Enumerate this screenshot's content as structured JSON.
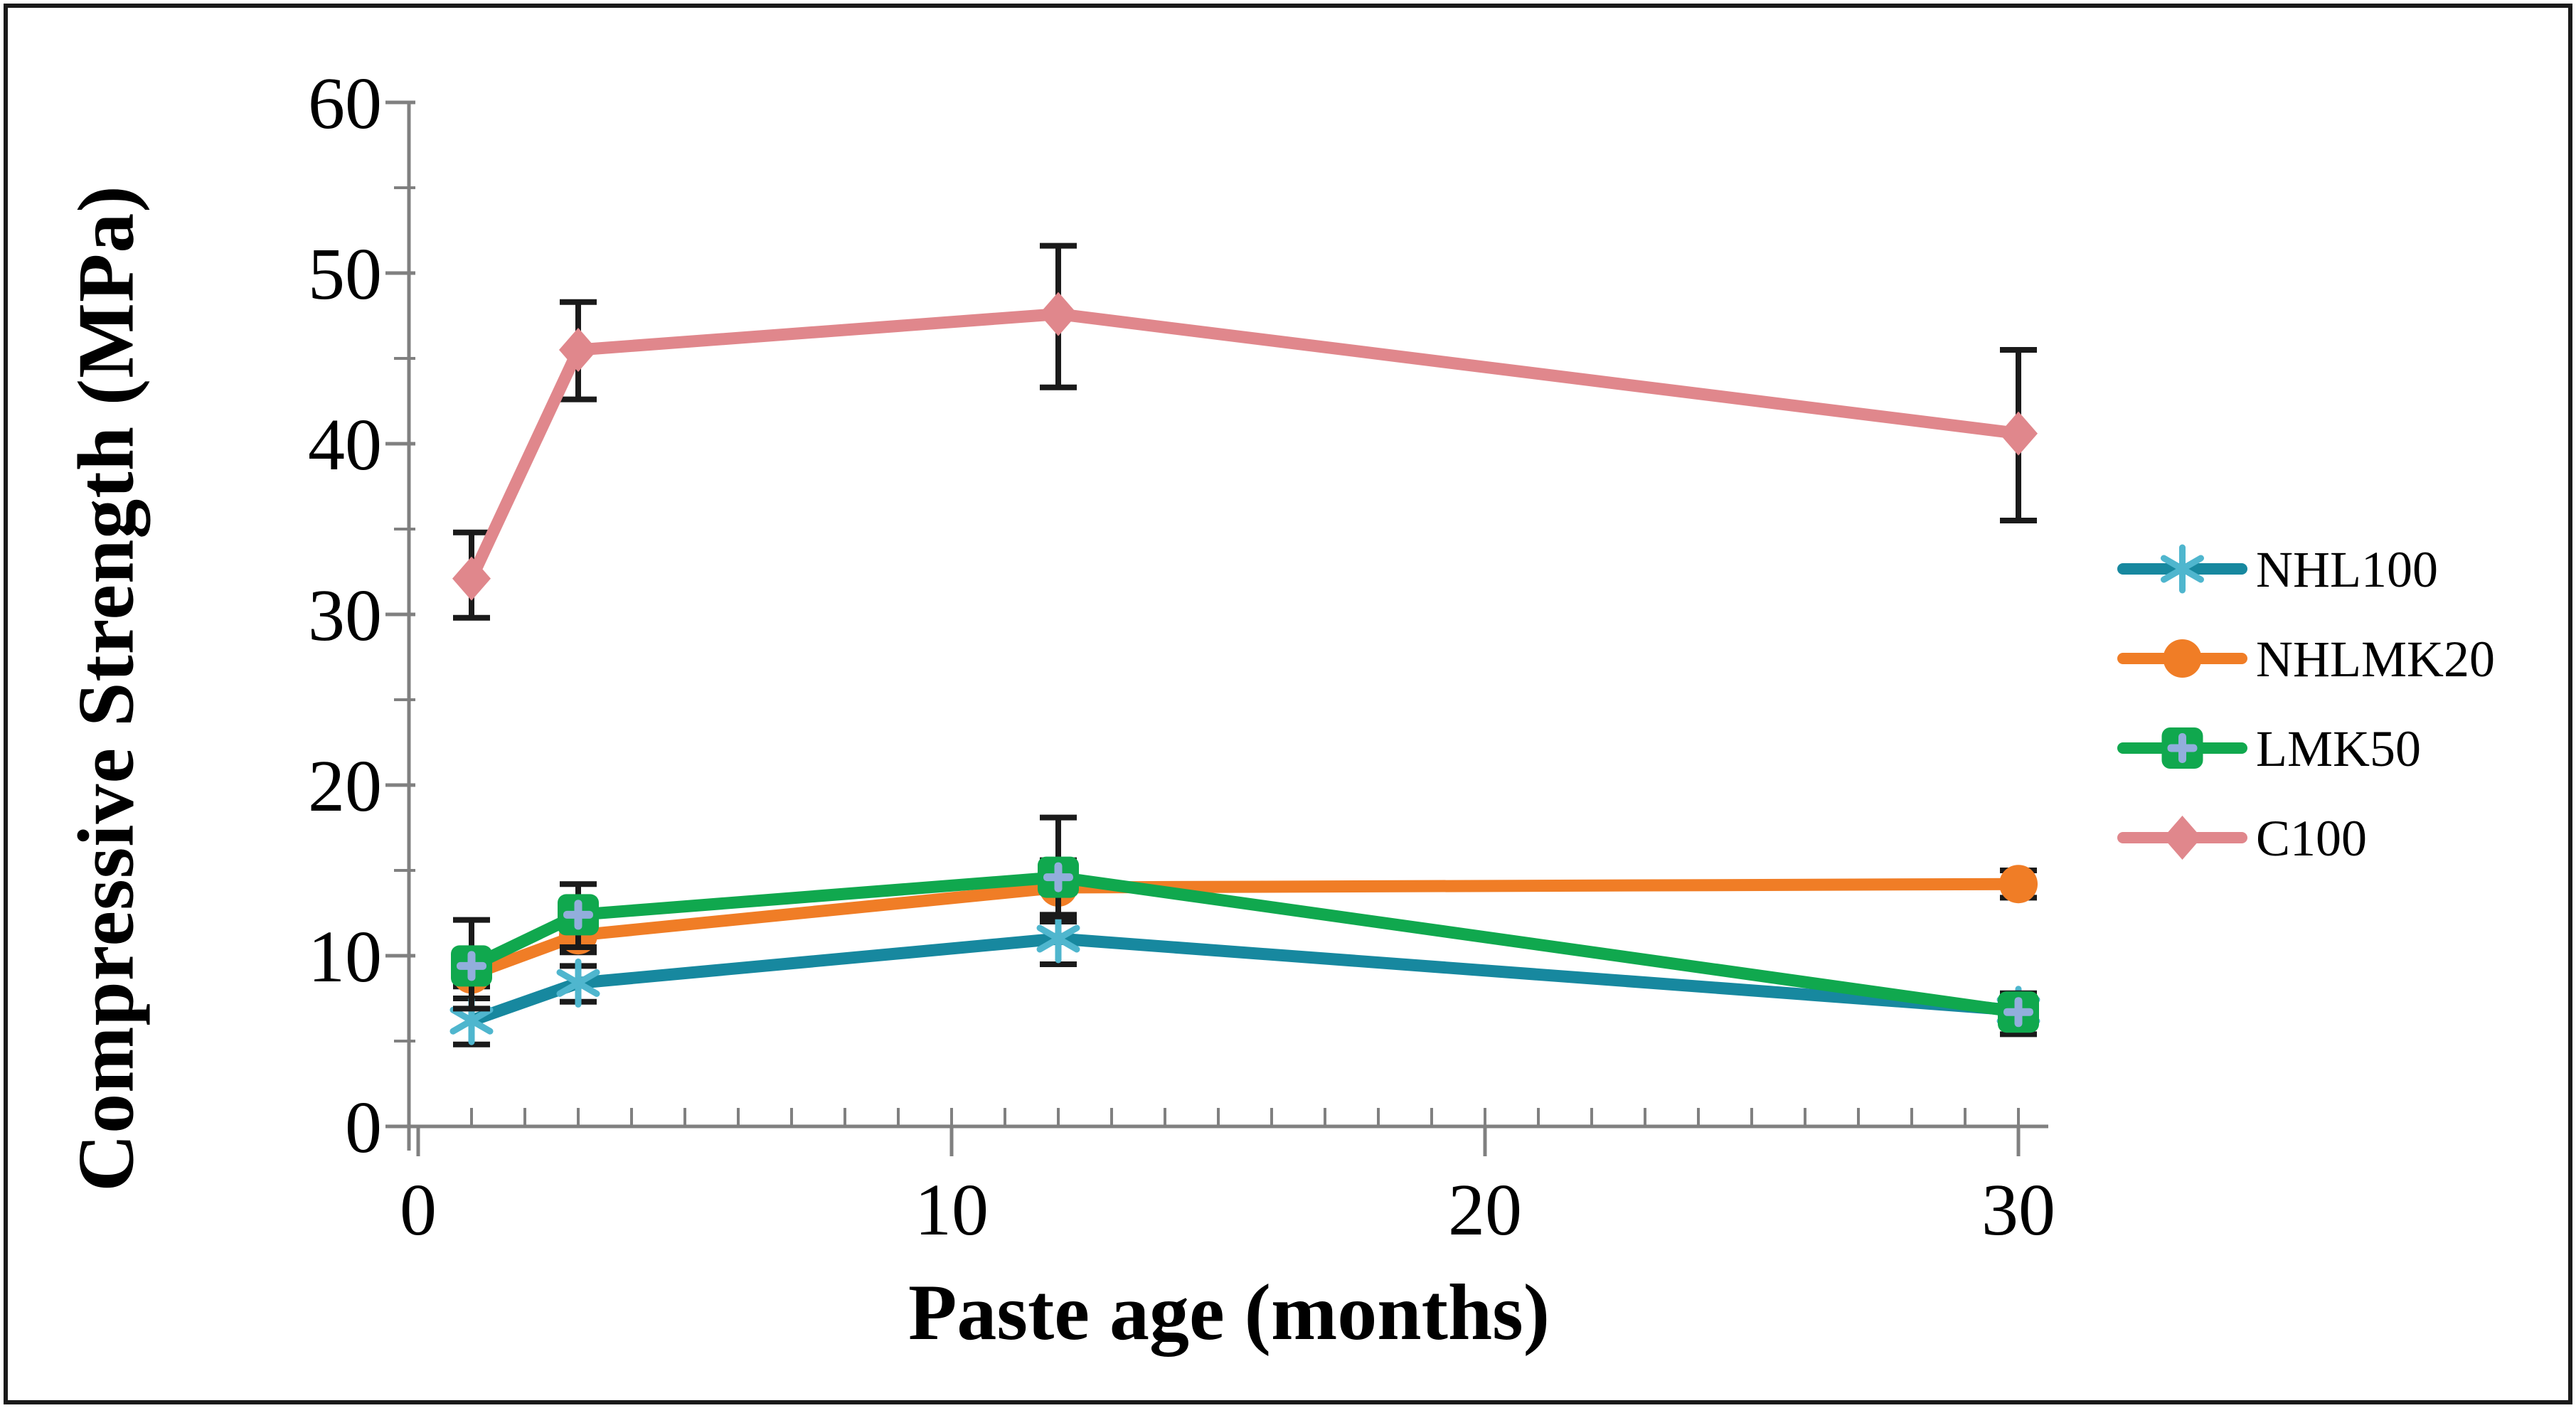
{
  "figure": {
    "background": "#ffffff",
    "border_color": "#1a1a1a",
    "border_width": 6
  },
  "chart_data": {
    "type": "line",
    "title": "",
    "xlabel": "Paste age (months)",
    "ylabel": "Compressive Strength (MPa)",
    "x": [
      1,
      3,
      12,
      30
    ],
    "xlim": [
      0,
      30.5
    ],
    "ylim": [
      0,
      60
    ],
    "x_major_ticks": [
      0,
      10,
      20,
      30
    ],
    "x_minor_tick_step": 1,
    "y_major_tick_step": 10,
    "y_minor_tick_step": 5,
    "grid": false,
    "legend_position": "right",
    "axis_color": "#808080",
    "error_bar_color": "#1a1a1a",
    "tick_label_color": "#000000",
    "series": [
      {
        "name": "NHL100",
        "color": "#17889F",
        "marker": "asterisk",
        "marker_color": "#4FB6CE",
        "values": [
          6.2,
          8.4,
          11.0,
          6.8
        ],
        "err_up": [
          1.3,
          1.0,
          1.0,
          0.8
        ],
        "err_down": [
          1.4,
          1.1,
          1.5,
          0.8
        ]
      },
      {
        "name": "NHLMK20",
        "color": "#F07D26",
        "marker": "circle",
        "marker_color": "#F07D26",
        "values": [
          8.9,
          11.2,
          14.0,
          14.2
        ],
        "err_up": [
          0.7,
          1.0,
          1.6,
          0.8
        ],
        "err_down": [
          0.7,
          1.0,
          1.6,
          0.8
        ]
      },
      {
        "name": "LMK50",
        "color": "#10A84E",
        "marker": "square-plus",
        "marker_color": "#10A84E",
        "marker_inner_color": "#92AEDC",
        "values": [
          9.4,
          12.4,
          14.6,
          6.7
        ],
        "err_up": [
          2.7,
          1.8,
          3.5,
          1.1
        ],
        "err_down": [
          2.5,
          1.9,
          2.3,
          1.3
        ]
      },
      {
        "name": "C100",
        "color": "#E0878C",
        "marker": "diamond",
        "marker_color": "#E0878C",
        "values": [
          32.1,
          45.5,
          47.6,
          40.6
        ],
        "err_up": [
          2.7,
          2.8,
          4.0,
          4.9
        ],
        "err_down": [
          2.3,
          2.9,
          4.3,
          5.1
        ]
      }
    ]
  }
}
